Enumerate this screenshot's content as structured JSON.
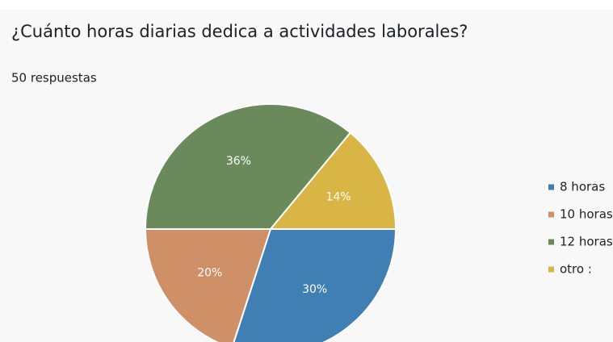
{
  "chart_data": {
    "type": "pie",
    "title": "¿Cuánto horas diarias dedica a actividades laborales?",
    "subtitle": "50 respuestas",
    "categories": [
      "8 horas",
      "10 horas",
      "12 horas",
      "otro :"
    ],
    "values": [
      30,
      20,
      36,
      14
    ],
    "value_labels": [
      "30%",
      "20%",
      "36%",
      "14%"
    ],
    "colors": [
      "#3f7fb4",
      "#cf9068",
      "#6a8a5c",
      "#d8b544"
    ],
    "legend": "right"
  }
}
